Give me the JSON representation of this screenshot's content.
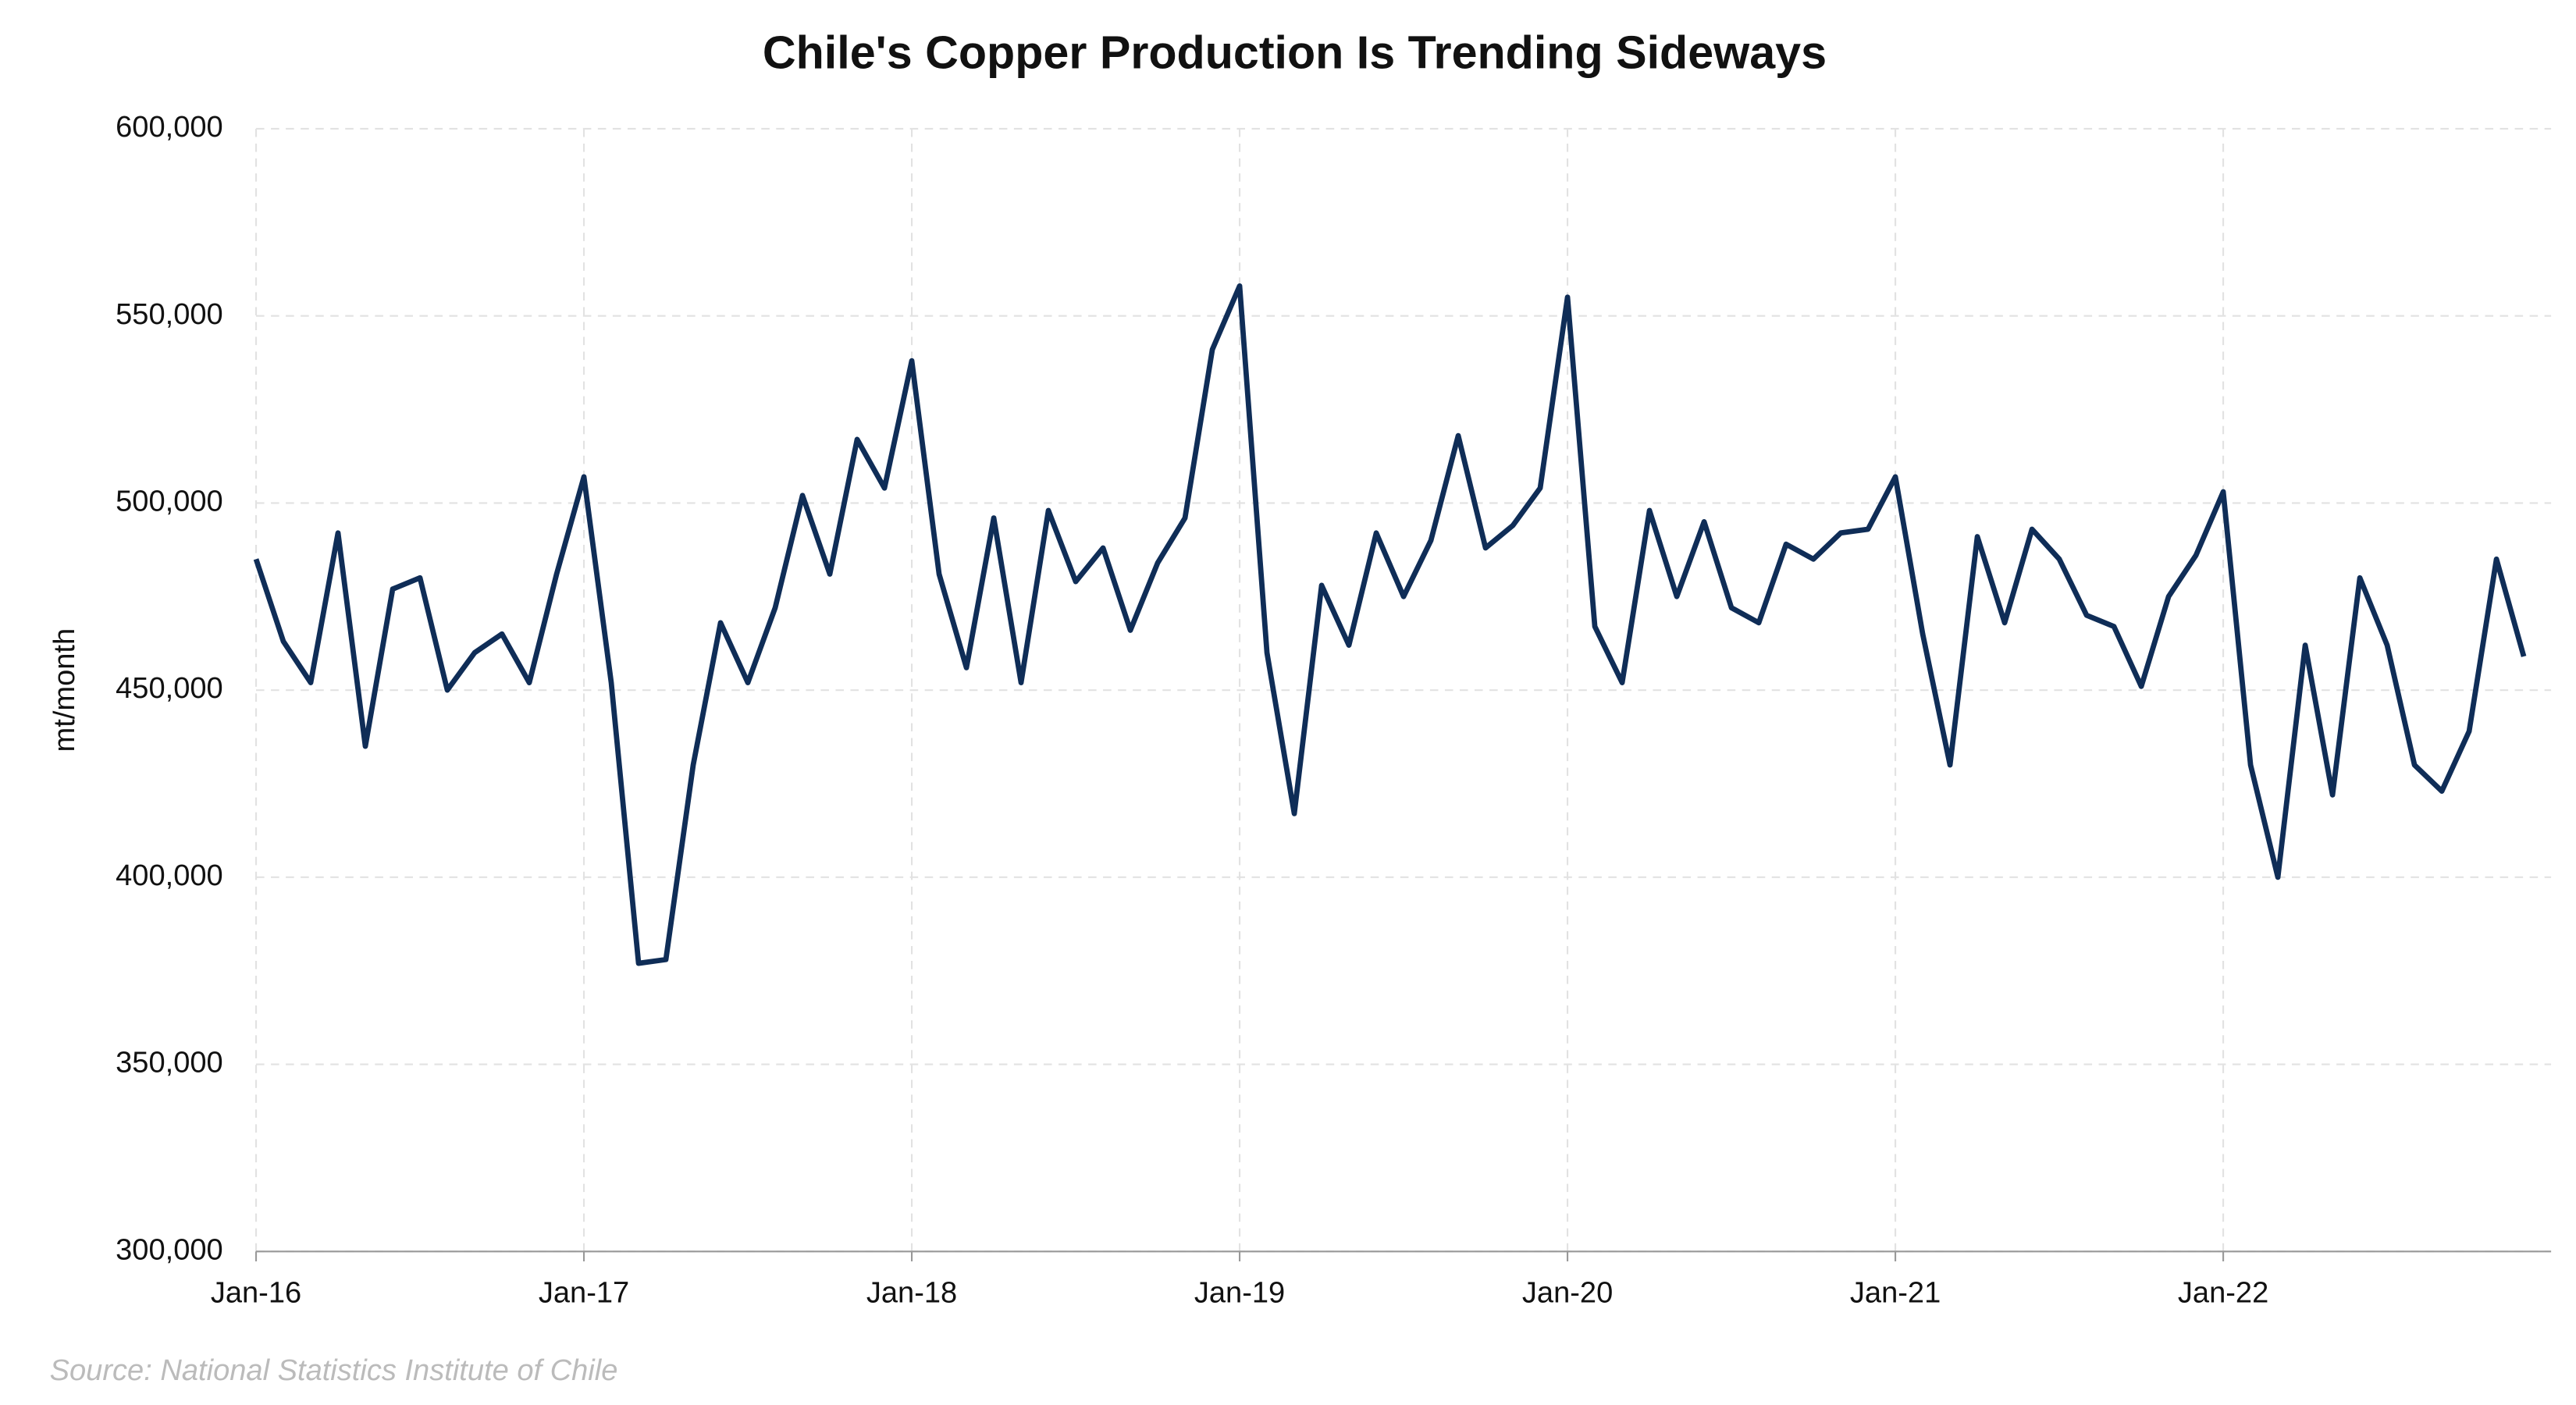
{
  "chart_data": {
    "type": "line",
    "title": "Chile's Copper Production Is Trending Sideways",
    "y_label": "mt/month",
    "source": "Source: National Statistics Institute of Chile",
    "x": [
      "2016-01",
      "2016-02",
      "2016-03",
      "2016-04",
      "2016-05",
      "2016-06",
      "2016-07",
      "2016-08",
      "2016-09",
      "2016-10",
      "2016-11",
      "2016-12",
      "2017-01",
      "2017-02",
      "2017-03",
      "2017-04",
      "2017-05",
      "2017-06",
      "2017-07",
      "2017-08",
      "2017-09",
      "2017-10",
      "2017-11",
      "2017-12",
      "2018-01",
      "2018-02",
      "2018-03",
      "2018-04",
      "2018-05",
      "2018-06",
      "2018-07",
      "2018-08",
      "2018-09",
      "2018-10",
      "2018-11",
      "2018-12",
      "2019-01",
      "2019-02",
      "2019-03",
      "2019-04",
      "2019-05",
      "2019-06",
      "2019-07",
      "2019-08",
      "2019-09",
      "2019-10",
      "2019-11",
      "2019-12",
      "2020-01",
      "2020-02",
      "2020-03",
      "2020-04",
      "2020-05",
      "2020-06",
      "2020-07",
      "2020-08",
      "2020-09",
      "2020-10",
      "2020-11",
      "2020-12",
      "2021-01",
      "2021-02",
      "2021-03",
      "2021-04",
      "2021-05",
      "2021-06",
      "2021-07",
      "2021-08",
      "2021-09",
      "2021-10",
      "2021-11",
      "2021-12",
      "2022-01",
      "2022-02",
      "2022-03",
      "2022-04",
      "2022-05",
      "2022-06",
      "2022-07",
      "2022-08",
      "2022-09",
      "2022-10",
      "2022-11",
      "2022-12"
    ],
    "series": [
      {
        "name": "Copper production",
        "color": "#0f2d57",
        "values": [
          485000,
          463000,
          452000,
          492000,
          435000,
          477000,
          480000,
          450000,
          460000,
          465000,
          452000,
          481000,
          507000,
          452000,
          377000,
          378000,
          430000,
          468000,
          452000,
          472000,
          502000,
          481000,
          517000,
          504000,
          538000,
          481000,
          456000,
          496000,
          452000,
          498000,
          479000,
          488000,
          466000,
          484000,
          496000,
          541000,
          558000,
          460000,
          417000,
          478000,
          462000,
          492000,
          475000,
          490000,
          518000,
          488000,
          494000,
          504000,
          555000,
          467000,
          452000,
          498000,
          475000,
          495000,
          472000,
          468000,
          489000,
          485000,
          492000,
          493000,
          507000,
          465000,
          430000,
          491000,
          468000,
          493000,
          485000,
          470000,
          467000,
          451000,
          475000,
          486000,
          503000,
          430000,
          400000,
          462000,
          422000,
          480000,
          462000,
          430000,
          423000,
          439000,
          485000,
          459000
        ]
      }
    ],
    "xlim": [
      "2016-01",
      "2023-01"
    ],
    "xticks": [
      {
        "value": "2016-01",
        "label": "Jan-16"
      },
      {
        "value": "2017-01",
        "label": "Jan-17"
      },
      {
        "value": "2018-01",
        "label": "Jan-18"
      },
      {
        "value": "2019-01",
        "label": "Jan-19"
      },
      {
        "value": "2020-01",
        "label": "Jan-20"
      },
      {
        "value": "2021-01",
        "label": "Jan-21"
      },
      {
        "value": "2022-01",
        "label": "Jan-22"
      }
    ],
    "ylim": [
      300000,
      600000
    ],
    "yticks": [
      {
        "value": 300000,
        "label": "300,000"
      },
      {
        "value": 350000,
        "label": "350,000"
      },
      {
        "value": 400000,
        "label": "400,000"
      },
      {
        "value": 450000,
        "label": "450,000"
      },
      {
        "value": 500000,
        "label": "500,000"
      },
      {
        "value": 550000,
        "label": "550,000"
      },
      {
        "value": 600000,
        "label": "600,000"
      }
    ],
    "grid": true
  }
}
